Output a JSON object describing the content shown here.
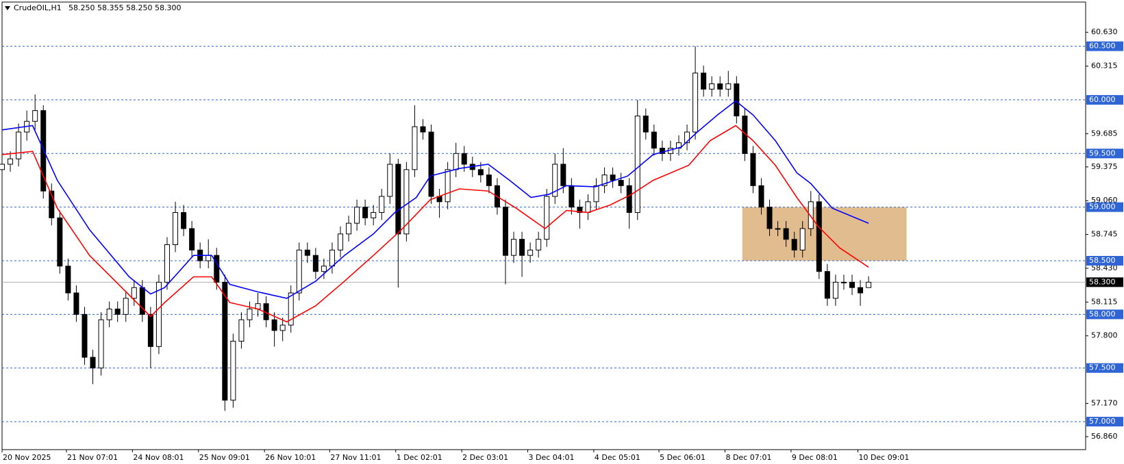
{
  "chart_data": {
    "type": "candlestick",
    "title": "CrudeOIL,H1",
    "quote": "58.250 58.355 58.250 58.300",
    "candles": [
      [
        59.35,
        59.48,
        59.28,
        59.4
      ],
      [
        59.4,
        59.52,
        59.33,
        59.45
      ],
      [
        59.45,
        59.78,
        59.38,
        59.7
      ],
      [
        59.7,
        59.9,
        59.62,
        59.8
      ],
      [
        59.8,
        60.05,
        59.72,
        59.9
      ],
      [
        59.9,
        59.95,
        59.08,
        59.15
      ],
      [
        59.15,
        59.22,
        58.83,
        58.9
      ],
      [
        58.9,
        58.97,
        58.38,
        58.45
      ],
      [
        58.45,
        58.52,
        58.13,
        58.2
      ],
      [
        58.2,
        58.27,
        57.93,
        58.0
      ],
      [
        58.0,
        58.07,
        57.53,
        57.6
      ],
      [
        57.6,
        57.67,
        57.35,
        57.5
      ],
      [
        57.5,
        58.02,
        57.43,
        57.95
      ],
      [
        57.95,
        58.12,
        57.88,
        58.05
      ],
      [
        58.05,
        58.12,
        57.93,
        58.0
      ],
      [
        58.0,
        58.22,
        57.93,
        58.15
      ],
      [
        58.15,
        58.32,
        58.08,
        58.25
      ],
      [
        58.25,
        58.32,
        57.93,
        58.0
      ],
      [
        58.0,
        58.07,
        57.5,
        57.7
      ],
      [
        57.7,
        58.37,
        57.63,
        58.3
      ],
      [
        58.3,
        58.72,
        58.23,
        58.65
      ],
      [
        58.65,
        59.05,
        58.58,
        58.95
      ],
      [
        58.95,
        59.02,
        58.73,
        58.8
      ],
      [
        58.8,
        58.87,
        58.53,
        58.6
      ],
      [
        58.6,
        58.67,
        58.43,
        58.5
      ],
      [
        58.5,
        58.7,
        58.43,
        58.55
      ],
      [
        58.55,
        58.62,
        58.23,
        58.3
      ],
      [
        58.3,
        58.37,
        57.1,
        57.2
      ],
      [
        57.2,
        57.82,
        57.13,
        57.75
      ],
      [
        57.75,
        58.02,
        57.68,
        57.95
      ],
      [
        57.95,
        58.12,
        57.88,
        58.05
      ],
      [
        58.05,
        58.2,
        57.98,
        58.1
      ],
      [
        58.1,
        58.17,
        57.88,
        57.95
      ],
      [
        57.95,
        58.02,
        57.7,
        57.85
      ],
      [
        57.85,
        57.97,
        57.75,
        57.9
      ],
      [
        57.9,
        58.27,
        57.83,
        58.2
      ],
      [
        58.2,
        58.67,
        58.13,
        58.6
      ],
      [
        58.6,
        58.67,
        58.48,
        58.55
      ],
      [
        58.55,
        58.62,
        58.33,
        58.4
      ],
      [
        58.4,
        58.52,
        58.33,
        58.45
      ],
      [
        58.45,
        58.67,
        58.38,
        58.6
      ],
      [
        58.6,
        58.82,
        58.53,
        58.75
      ],
      [
        58.75,
        58.92,
        58.68,
        58.85
      ],
      [
        58.85,
        59.07,
        58.78,
        59.0
      ],
      [
        59.0,
        59.07,
        58.83,
        58.9
      ],
      [
        58.9,
        59.02,
        58.83,
        58.95
      ],
      [
        58.95,
        59.17,
        58.88,
        59.1
      ],
      [
        59.1,
        59.5,
        59.03,
        59.4
      ],
      [
        59.4,
        59.45,
        58.25,
        58.75
      ],
      [
        58.75,
        59.42,
        58.68,
        59.35
      ],
      [
        59.35,
        59.95,
        59.28,
        59.75
      ],
      [
        59.75,
        59.82,
        59.63,
        59.7
      ],
      [
        59.7,
        59.77,
        59.03,
        59.1
      ],
      [
        59.1,
        59.17,
        58.9,
        59.05
      ],
      [
        59.05,
        59.42,
        58.98,
        59.35
      ],
      [
        59.35,
        59.6,
        59.28,
        59.5
      ],
      [
        59.5,
        59.57,
        59.33,
        59.4
      ],
      [
        59.4,
        59.47,
        59.28,
        59.35
      ],
      [
        59.35,
        59.42,
        59.23,
        59.3
      ],
      [
        59.3,
        59.37,
        59.13,
        59.2
      ],
      [
        59.2,
        59.27,
        58.93,
        59.0
      ],
      [
        59.0,
        59.07,
        58.28,
        58.55
      ],
      [
        58.55,
        58.77,
        58.48,
        58.7
      ],
      [
        58.7,
        58.77,
        58.35,
        58.55
      ],
      [
        58.55,
        58.67,
        58.48,
        58.6
      ],
      [
        58.6,
        58.77,
        58.53,
        58.7
      ],
      [
        58.7,
        59.17,
        58.63,
        59.1
      ],
      [
        59.1,
        59.5,
        59.03,
        59.4
      ],
      [
        59.4,
        59.55,
        59.13,
        59.2
      ],
      [
        59.2,
        59.27,
        58.93,
        59.0
      ],
      [
        59.0,
        59.07,
        58.8,
        58.95
      ],
      [
        58.95,
        59.12,
        58.88,
        59.05
      ],
      [
        59.05,
        59.27,
        58.98,
        59.2
      ],
      [
        59.2,
        59.37,
        59.13,
        59.3
      ],
      [
        59.3,
        59.37,
        59.18,
        59.25
      ],
      [
        59.25,
        59.32,
        59.13,
        59.2
      ],
      [
        59.2,
        59.27,
        58.8,
        58.95
      ],
      [
        58.95,
        60.0,
        58.88,
        59.85
      ],
      [
        59.85,
        59.92,
        59.63,
        59.7
      ],
      [
        59.7,
        59.77,
        59.48,
        59.55
      ],
      [
        59.55,
        59.62,
        59.43,
        59.5
      ],
      [
        59.5,
        59.62,
        59.43,
        59.55
      ],
      [
        59.55,
        59.67,
        59.48,
        59.6
      ],
      [
        59.6,
        59.77,
        59.53,
        59.7
      ],
      [
        59.7,
        60.5,
        59.63,
        60.25
      ],
      [
        60.25,
        60.32,
        60.03,
        60.1
      ],
      [
        60.1,
        60.22,
        60.03,
        60.15
      ],
      [
        60.15,
        60.22,
        60.03,
        60.1
      ],
      [
        60.1,
        60.27,
        60.03,
        60.15
      ],
      [
        60.15,
        60.22,
        59.78,
        59.85
      ],
      [
        59.85,
        59.92,
        59.43,
        59.5
      ],
      [
        59.5,
        59.57,
        59.13,
        59.2
      ],
      [
        59.2,
        59.27,
        58.93,
        59.0
      ],
      [
        59.0,
        59.07,
        58.73,
        58.8
      ],
      [
        58.8,
        58.87,
        58.73,
        58.8
      ],
      [
        58.8,
        58.87,
        58.63,
        58.7
      ],
      [
        58.7,
        58.77,
        58.53,
        58.6
      ],
      [
        58.6,
        58.87,
        58.53,
        58.8
      ],
      [
        58.8,
        59.15,
        58.73,
        59.05
      ],
      [
        59.05,
        59.12,
        58.33,
        58.4
      ],
      [
        58.4,
        58.47,
        58.08,
        58.15
      ],
      [
        58.15,
        58.37,
        58.08,
        58.3
      ],
      [
        58.3,
        58.37,
        58.23,
        58.3
      ],
      [
        58.3,
        58.37,
        58.18,
        58.25
      ],
      [
        58.25,
        58.32,
        58.08,
        58.2
      ],
      [
        58.25,
        58.355,
        58.25,
        58.3
      ]
    ],
    "series": [
      {
        "color": "#0000ff",
        "x": [
          0,
          3.7,
          6.7,
          10.6,
          15.4,
          18,
          19.7,
          23.2,
          25.4,
          27.6,
          31,
          34.5,
          38,
          41.5,
          45,
          47.6,
          50.2,
          51.9,
          55.4,
          58.9,
          61.5,
          64.1,
          66.3,
          68.4,
          71.9,
          75.8,
          78.9,
          82.3,
          84.1,
          86.7,
          88.9,
          91,
          93.7,
          96.3,
          98,
          100.6,
          105
        ],
        "values": [
          59.72,
          59.76,
          59.25,
          58.79,
          58.35,
          58.19,
          58.25,
          58.55,
          58.55,
          58.28,
          58.21,
          58.15,
          58.31,
          58.55,
          58.75,
          58.95,
          59.09,
          59.29,
          59.36,
          59.4,
          59.25,
          59.09,
          59.12,
          59.2,
          59.19,
          59.29,
          59.49,
          59.56,
          59.69,
          59.86,
          59.99,
          59.86,
          59.62,
          59.32,
          59.22,
          58.99,
          58.85
        ]
      },
      {
        "color": "#ff0000",
        "x": [
          0,
          3.7,
          6.7,
          10.6,
          14.5,
          18,
          19.7,
          23.2,
          25.4,
          27.6,
          31,
          34.5,
          38,
          41.5,
          45,
          48.4,
          51.9,
          55.4,
          58.9,
          62.3,
          65.8,
          68.4,
          71,
          73.7,
          76.3,
          78.9,
          83.2,
          85.8,
          88.9,
          91,
          93.7,
          96.3,
          98.9,
          101.5,
          105
        ],
        "values": [
          59.49,
          59.52,
          58.99,
          58.55,
          58.25,
          57.98,
          58.11,
          58.35,
          58.35,
          58.11,
          58.05,
          57.93,
          58.08,
          58.31,
          58.55,
          58.79,
          59.07,
          59.17,
          59.15,
          58.99,
          58.8,
          58.97,
          58.95,
          59.02,
          59.12,
          59.25,
          59.39,
          59.62,
          59.76,
          59.62,
          59.39,
          59.09,
          58.82,
          58.62,
          58.44
        ]
      }
    ],
    "zone": {
      "x": [
        89.7,
        109.6
      ],
      "y": [
        58.5,
        59.0
      ],
      "color": "#dcb07a"
    },
    "levels": [
      {
        "value": 60.5,
        "label": "60.500"
      },
      {
        "value": 60.0,
        "label": "60.000"
      },
      {
        "value": 59.5,
        "label": "59.500"
      },
      {
        "value": 59.0,
        "label": "59.000"
      },
      {
        "value": 58.5,
        "label": "58.500"
      },
      {
        "value": 58.0,
        "label": "58.000"
      },
      {
        "value": 57.5,
        "label": "57.500"
      },
      {
        "value": 57.0,
        "label": "57.000"
      }
    ],
    "level_color": "#2e64d4",
    "current_price": {
      "value": 58.3,
      "label": "58.300"
    },
    "xlim": [
      0,
      131.3
    ],
    "ylim": [
      56.739,
      60.912
    ],
    "yticks": [
      {
        "value": 60.63,
        "label": "60.630"
      },
      {
        "value": 60.315,
        "label": "60.315"
      },
      {
        "value": 59.685,
        "label": "59.685"
      },
      {
        "value": 59.375,
        "label": "59.375"
      },
      {
        "value": 59.06,
        "label": "59.060"
      },
      {
        "value": 58.745,
        "label": "58.745"
      },
      {
        "value": 58.43,
        "label": "58.430"
      },
      {
        "value": 58.115,
        "label": "58.115"
      },
      {
        "value": 57.8,
        "label": "57.800"
      },
      {
        "value": 57.17,
        "label": "57.170"
      },
      {
        "value": 56.86,
        "label": "56.860"
      }
    ],
    "xticks": [
      {
        "value": 0,
        "label": "20 Nov 2025"
      },
      {
        "value": 7.8,
        "label": "21 Nov 07:01"
      },
      {
        "value": 15.8,
        "label": "24 Nov 08:01"
      },
      {
        "value": 23.8,
        "label": "25 Nov 09:01"
      },
      {
        "value": 31.8,
        "label": "26 Nov 10:01"
      },
      {
        "value": 39.7,
        "label": "27 Nov 11:01"
      },
      {
        "value": 47.7,
        "label": "1 Dec 02:01"
      },
      {
        "value": 55.7,
        "label": "2 Dec 03:01"
      },
      {
        "value": 63.7,
        "label": "3 Dec 04:01"
      },
      {
        "value": 71.7,
        "label": "4 Dec 05:01"
      },
      {
        "value": 79.6,
        "label": "5 Dec 06:01"
      },
      {
        "value": 87.6,
        "label": "8 Dec 07:01"
      },
      {
        "value": 95.6,
        "label": "9 Dec 08:01"
      },
      {
        "value": 103.7,
        "label": "10 Dec 09:01"
      }
    ],
    "grid": false
  }
}
